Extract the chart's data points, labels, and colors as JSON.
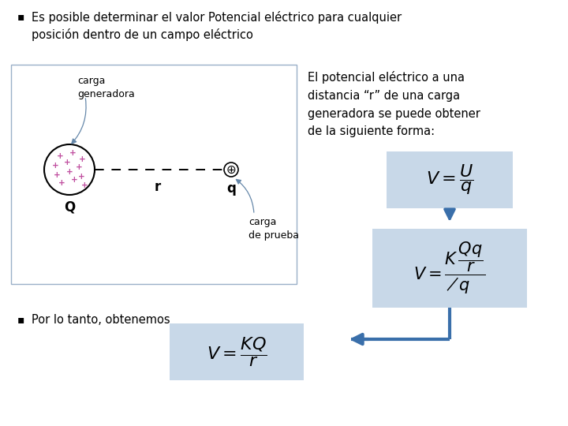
{
  "title_bullet": "Es posible determinar el valor Potencial eléctrico para cualquier\nposición dentro de un campo eléctrico",
  "desc_text": "El potencial eléctrico a una\ndistancia “r” de una carga\ngeneradora se puede obtener\nde la siguiente forma:",
  "bullet2_text": "Por lo tanto, obtenemos",
  "box_color": "#c8d8e8",
  "arrow_color": "#3a6faa",
  "bg_color": "#ffffff",
  "text_color": "#000000",
  "diagram_border": "#9ab0c8",
  "arrow_label_color": "#6688aa",
  "charge_color": "#c050a0"
}
